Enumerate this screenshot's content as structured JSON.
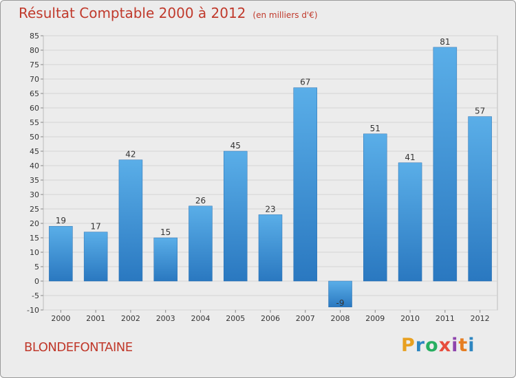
{
  "title": "Résultat Comptable 2000 à 2012",
  "subtitle": "(en milliers d'€)",
  "commune": "BLONDEFONTAINE",
  "logo": {
    "letters": [
      "P",
      "r",
      "o",
      "x",
      "i",
      "t",
      "i"
    ],
    "colors": [
      "#e8a020",
      "#2e86c1",
      "#27ae60",
      "#e74c3c",
      "#8e44ad",
      "#e67e22",
      "#2e86c1"
    ]
  },
  "colors": {
    "bar": "#4a9fe0",
    "bar_dark": "#2a78c0",
    "title": "#c0392b",
    "background": "#ececec"
  },
  "chart_data": {
    "type": "bar",
    "categories": [
      "2000",
      "2001",
      "2002",
      "2003",
      "2004",
      "2005",
      "2006",
      "2007",
      "2008",
      "2009",
      "2010",
      "2011",
      "2012"
    ],
    "values": [
      19,
      17,
      42,
      15,
      26,
      45,
      23,
      67,
      -9,
      51,
      41,
      81,
      57
    ],
    "labels": [
      "19",
      "17",
      "42",
      "15",
      "26",
      "45",
      "23",
      "67",
      "-9",
      "51",
      "41",
      "81",
      "57"
    ],
    "title": "Résultat Comptable 2000 à 2012",
    "subtitle": "(en milliers d'€)",
    "xlabel": "",
    "ylabel": "",
    "ylim": [
      -10,
      85
    ],
    "yticks": [
      -10,
      -5,
      0,
      5,
      10,
      15,
      20,
      25,
      30,
      35,
      40,
      45,
      50,
      55,
      60,
      65,
      70,
      75,
      80,
      85
    ],
    "grid": true
  }
}
